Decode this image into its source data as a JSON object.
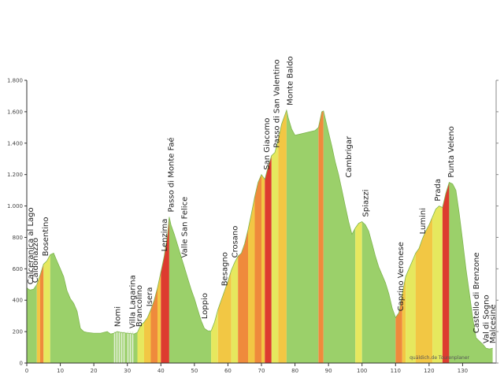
{
  "chart_data": {
    "type": "area",
    "title": "",
    "xlabel": "",
    "ylabel": "",
    "xlim": [
      0,
      140
    ],
    "ylim": [
      0,
      1800
    ],
    "x_ticks": [
      0,
      10,
      20,
      30,
      40,
      50,
      60,
      70,
      80,
      90,
      100,
      110,
      120,
      130
    ],
    "y_ticks": [
      {
        "value": 0,
        "label": "0"
      },
      {
        "value": 200,
        "label": "200"
      },
      {
        "value": 400,
        "label": "400"
      },
      {
        "value": 600,
        "label": "600"
      },
      {
        "value": 800,
        "label": "800"
      },
      {
        "value": 1000,
        "label": "1.000"
      },
      {
        "value": 1200,
        "label": "1.200"
      },
      {
        "value": 1400,
        "label": "1.400"
      },
      {
        "value": 1600,
        "label": "1.600"
      },
      {
        "value": 1800,
        "label": "1.800"
      }
    ],
    "grid": false,
    "colors": {
      "flat": "#9bd06a",
      "light": "#e6e85e",
      "moderate": "#f2c744",
      "steep": "#ef8a3c",
      "very_steep": "#dd3b2f",
      "axis": "#333333",
      "tunnel": "#e2efd6"
    },
    "profile": [
      [
        0,
        480
      ],
      [
        0.5,
        470
      ],
      [
        1,
        465
      ],
      [
        2,
        470
      ],
      [
        3,
        500
      ],
      [
        4,
        560
      ],
      [
        5,
        630
      ],
      [
        6,
        650
      ],
      [
        7,
        690
      ],
      [
        8,
        700
      ],
      [
        9,
        650
      ],
      [
        10,
        600
      ],
      [
        11,
        550
      ],
      [
        12,
        460
      ],
      [
        13,
        410
      ],
      [
        14,
        380
      ],
      [
        15,
        330
      ],
      [
        16,
        220
      ],
      [
        17,
        200
      ],
      [
        18,
        195
      ],
      [
        20,
        190
      ],
      [
        22,
        190
      ],
      [
        24,
        200
      ],
      [
        25,
        185
      ],
      [
        26,
        190
      ],
      [
        27,
        200
      ],
      [
        28,
        195
      ],
      [
        30,
        190
      ],
      [
        32,
        185
      ],
      [
        33,
        195
      ],
      [
        34,
        240
      ],
      [
        35,
        260
      ],
      [
        36,
        290
      ],
      [
        37,
        340
      ],
      [
        38,
        400
      ],
      [
        39,
        480
      ],
      [
        40,
        580
      ],
      [
        41,
        680
      ],
      [
        42,
        820
      ],
      [
        42.5,
        930
      ],
      [
        43,
        880
      ],
      [
        44,
        820
      ],
      [
        45,
        750
      ],
      [
        46,
        680
      ],
      [
        47,
        610
      ],
      [
        48,
        540
      ],
      [
        49,
        470
      ],
      [
        50,
        410
      ],
      [
        51,
        340
      ],
      [
        52,
        270
      ],
      [
        53,
        220
      ],
      [
        54,
        205
      ],
      [
        55,
        205
      ],
      [
        56,
        260
      ],
      [
        57,
        340
      ],
      [
        58,
        400
      ],
      [
        59,
        460
      ],
      [
        60,
        520
      ],
      [
        61,
        590
      ],
      [
        62,
        640
      ],
      [
        63,
        680
      ],
      [
        64,
        700
      ],
      [
        65,
        760
      ],
      [
        66,
        850
      ],
      [
        67,
        950
      ],
      [
        68,
        1060
      ],
      [
        69,
        1150
      ],
      [
        70,
        1200
      ],
      [
        71,
        1170
      ],
      [
        72,
        1250
      ],
      [
        73,
        1320
      ],
      [
        74,
        1340
      ],
      [
        75,
        1420
      ],
      [
        76,
        1520
      ],
      [
        77,
        1580
      ],
      [
        77.5,
        1610
      ],
      [
        78,
        1560
      ],
      [
        79,
        1490
      ],
      [
        80,
        1450
      ],
      [
        82,
        1460
      ],
      [
        84,
        1470
      ],
      [
        86,
        1480
      ],
      [
        87,
        1500
      ],
      [
        88,
        1600
      ],
      [
        88.5,
        1605
      ],
      [
        89,
        1560
      ],
      [
        90,
        1470
      ],
      [
        91,
        1380
      ],
      [
        92,
        1280
      ],
      [
        93,
        1200
      ],
      [
        94,
        1100
      ],
      [
        95,
        1000
      ],
      [
        96,
        900
      ],
      [
        97,
        820
      ],
      [
        98,
        860
      ],
      [
        99,
        890
      ],
      [
        100,
        900
      ],
      [
        101,
        880
      ],
      [
        102,
        840
      ],
      [
        103,
        760
      ],
      [
        104,
        680
      ],
      [
        105,
        610
      ],
      [
        106,
        560
      ],
      [
        107,
        510
      ],
      [
        108,
        440
      ],
      [
        109,
        350
      ],
      [
        110,
        290
      ],
      [
        111,
        320
      ],
      [
        112,
        440
      ],
      [
        113,
        550
      ],
      [
        114,
        600
      ],
      [
        115,
        650
      ],
      [
        116,
        700
      ],
      [
        117,
        730
      ],
      [
        118,
        790
      ],
      [
        119,
        840
      ],
      [
        120,
        880
      ],
      [
        121,
        930
      ],
      [
        122,
        980
      ],
      [
        123,
        1000
      ],
      [
        124,
        990
      ],
      [
        125,
        1080
      ],
      [
        126,
        1150
      ],
      [
        127,
        1140
      ],
      [
        128,
        1100
      ],
      [
        129,
        950
      ],
      [
        130,
        780
      ],
      [
        131,
        600
      ],
      [
        132,
        450
      ],
      [
        133,
        290
      ],
      [
        134,
        160
      ],
      [
        135,
        140
      ],
      [
        136,
        120
      ],
      [
        137,
        95
      ],
      [
        138,
        90
      ],
      [
        139,
        95
      ]
    ],
    "gradient_segments": [
      {
        "x1": 0,
        "x2": 3,
        "cls": "flat"
      },
      {
        "x1": 3,
        "x2": 4,
        "cls": "moderate"
      },
      {
        "x1": 4,
        "x2": 5,
        "cls": "steep"
      },
      {
        "x1": 5,
        "x2": 7,
        "cls": "light"
      },
      {
        "x1": 7,
        "x2": 33,
        "cls": "flat"
      },
      {
        "x1": 33,
        "x2": 35,
        "cls": "light"
      },
      {
        "x1": 35,
        "x2": 37,
        "cls": "moderate"
      },
      {
        "x1": 37,
        "x2": 39,
        "cls": "steep"
      },
      {
        "x1": 39,
        "x2": 40,
        "cls": "moderate"
      },
      {
        "x1": 40,
        "x2": 42.5,
        "cls": "very_steep"
      },
      {
        "x1": 42.5,
        "x2": 55,
        "cls": "flat"
      },
      {
        "x1": 55,
        "x2": 57,
        "cls": "light"
      },
      {
        "x1": 57,
        "x2": 61,
        "cls": "moderate"
      },
      {
        "x1": 61,
        "x2": 63,
        "cls": "light"
      },
      {
        "x1": 63,
        "x2": 66,
        "cls": "steep"
      },
      {
        "x1": 66,
        "x2": 68,
        "cls": "moderate"
      },
      {
        "x1": 68,
        "x2": 70,
        "cls": "steep"
      },
      {
        "x1": 70,
        "x2": 71,
        "cls": "moderate"
      },
      {
        "x1": 71,
        "x2": 73,
        "cls": "very_steep"
      },
      {
        "x1": 73,
        "x2": 75,
        "cls": "light"
      },
      {
        "x1": 75,
        "x2": 77.5,
        "cls": "moderate"
      },
      {
        "x1": 77.5,
        "x2": 87,
        "cls": "flat"
      },
      {
        "x1": 87,
        "x2": 88.5,
        "cls": "steep"
      },
      {
        "x1": 88.5,
        "x2": 98,
        "cls": "flat"
      },
      {
        "x1": 98,
        "x2": 100,
        "cls": "light"
      },
      {
        "x1": 100,
        "x2": 110,
        "cls": "flat"
      },
      {
        "x1": 110,
        "x2": 112,
        "cls": "steep"
      },
      {
        "x1": 112,
        "x2": 113,
        "cls": "moderate"
      },
      {
        "x1": 113,
        "x2": 116,
        "cls": "light"
      },
      {
        "x1": 116,
        "x2": 121,
        "cls": "moderate"
      },
      {
        "x1": 121,
        "x2": 124,
        "cls": "light"
      },
      {
        "x1": 124,
        "x2": 126,
        "cls": "very_steep"
      },
      {
        "x1": 126,
        "x2": 139,
        "cls": "flat"
      }
    ],
    "tunnels": [
      [
        26,
        29
      ],
      [
        30,
        32
      ]
    ],
    "annotations": [
      {
        "x": 1.0,
        "text": "Calceranica al Lago",
        "anchor_elev": 470
      },
      {
        "x": 2.5,
        "text": "Caldonazzo",
        "anchor_elev": 480
      },
      {
        "x": 5.5,
        "text": "Bosentino",
        "anchor_elev": 650
      },
      {
        "x": 27.0,
        "text": "Nomi",
        "anchor_elev": 200
      },
      {
        "x": 31.5,
        "text": "Villa Lagarina",
        "anchor_elev": 190
      },
      {
        "x": 33.5,
        "text": "Brancolino",
        "anchor_elev": 200
      },
      {
        "x": 36.5,
        "text": "Isera",
        "anchor_elev": 330
      },
      {
        "x": 41.0,
        "text": "Lenzima",
        "anchor_elev": 680
      },
      {
        "x": 43.0,
        "text": "Passo di Monte Faé",
        "anchor_elev": 930
      },
      {
        "x": 47.0,
        "text": "Valle San Felice",
        "anchor_elev": 640
      },
      {
        "x": 53.0,
        "text": "Loppio",
        "anchor_elev": 250
      },
      {
        "x": 59.0,
        "text": "Besagno",
        "anchor_elev": 460
      },
      {
        "x": 62.0,
        "text": "Crosano",
        "anchor_elev": 640
      },
      {
        "x": 71.5,
        "text": "San Giacomo",
        "anchor_elev": 1200
      },
      {
        "x": 74.5,
        "text": "Passo di San Valentino",
        "anchor_elev": 1340
      },
      {
        "x": 78.5,
        "text": "Monte Baldo",
        "anchor_elev": 1610
      },
      {
        "x": 96.0,
        "text": "Cambrigar",
        "anchor_elev": 1150
      },
      {
        "x": 101.0,
        "text": "Spiazzi",
        "anchor_elev": 900
      },
      {
        "x": 111.5,
        "text": "Caprino Veronese",
        "anchor_elev": 300
      },
      {
        "x": 118.0,
        "text": "Lumini",
        "anchor_elev": 790
      },
      {
        "x": 122.5,
        "text": "Prada",
        "anchor_elev": 1000
      },
      {
        "x": 126.5,
        "text": "Punta Veleno",
        "anchor_elev": 1150
      },
      {
        "x": 134.0,
        "text": "Castello di Brenzone",
        "anchor_elev": 160
      },
      {
        "x": 137.0,
        "text": "Val di Sogno",
        "anchor_elev": 95
      },
      {
        "x": 139.0,
        "text": "Malcesine",
        "anchor_elev": 95
      }
    ],
    "credit": "quäldich.de Tourenplaner"
  }
}
